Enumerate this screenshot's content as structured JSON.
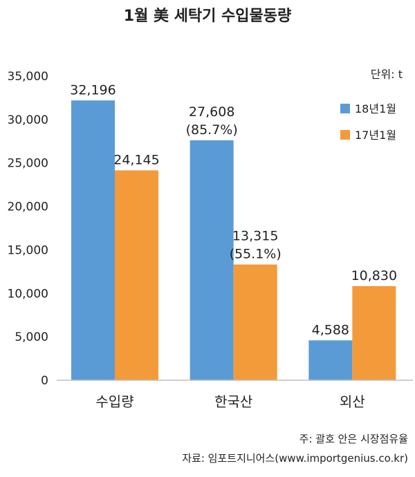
{
  "chart_data": {
    "type": "bar",
    "title": "1월 美 세탁기 수입물동량",
    "unit_label": "단위: t",
    "categories": [
      "수입량",
      "한국산",
      "외산"
    ],
    "series": [
      {
        "name": "18년1월",
        "color": "#5b9bd5",
        "values": [
          32196,
          27608,
          4588
        ],
        "labels": [
          "32,196",
          "27,608\n(85.7%)",
          "4,588"
        ]
      },
      {
        "name": "17년1월",
        "color": "#f39a3b",
        "values": [
          24145,
          13315,
          10830
        ],
        "labels": [
          "24,145",
          "13,315\n(55.1%)",
          "10,830"
        ]
      }
    ],
    "ylim": [
      0,
      35000
    ],
    "yticks": [
      "0",
      "5,000",
      "10,000",
      "15,000",
      "20,000",
      "25,000",
      "30,000",
      "35,000"
    ],
    "ytick_values": [
      0,
      5000,
      10000,
      15000,
      20000,
      25000,
      30000,
      35000
    ],
    "grid": false,
    "legend_position": "top-right"
  },
  "notes": [
    "주: 괄호 안은 시장점유율",
    "자료: 임포트지니어스(www.importgenius.co.kr)"
  ]
}
